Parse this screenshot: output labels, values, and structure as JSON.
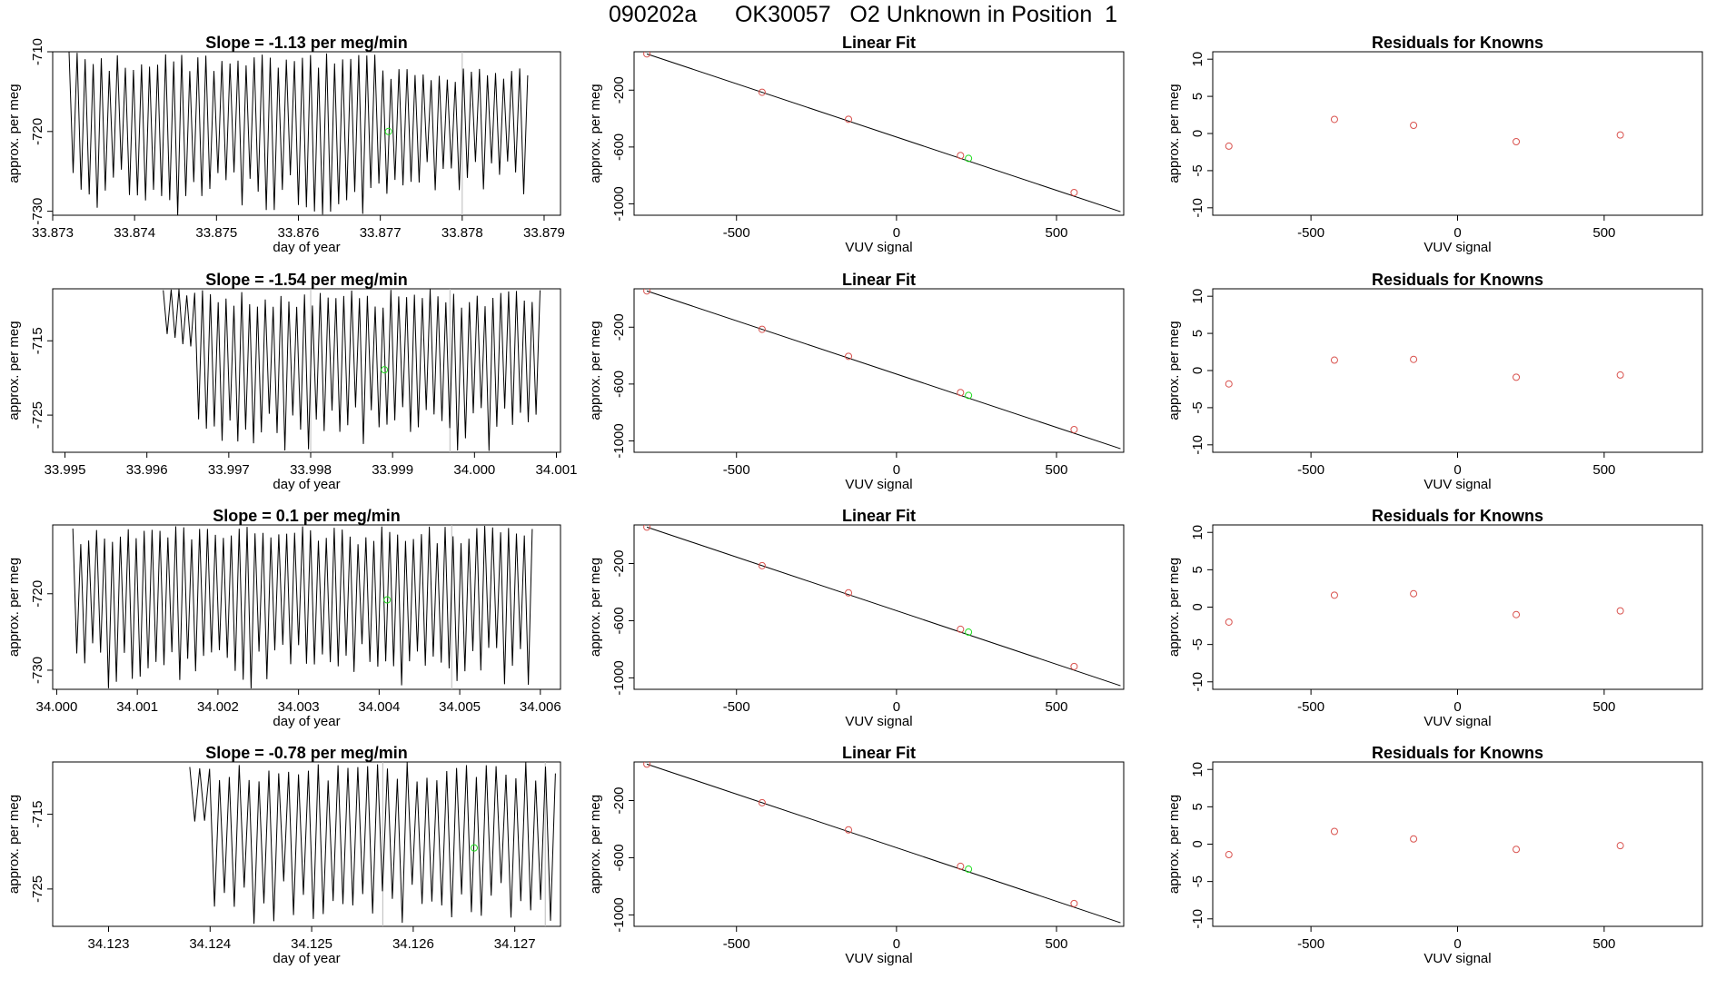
{
  "page_title": "090202a      OK30057   O2 Unknown in Position  1",
  "colors": {
    "trace": "#000000",
    "known_point": "#d9534f",
    "unknown_point": "#22dd22",
    "fit_line": "#000000"
  },
  "chart_data": [
    {
      "type": "line",
      "row": 0,
      "col": 0,
      "title": "Slope =  -1.13  per meg/min",
      "xlabel": "day of year",
      "ylabel": "approx. per meg",
      "xlim": [
        33.873,
        33.8792
      ],
      "ylim": [
        -730.5,
        -710
      ],
      "xticks": [
        33.873,
        33.874,
        33.875,
        33.876,
        33.877,
        33.878,
        33.879
      ],
      "xtick_labels": [
        "33.873",
        "33.874",
        "33.875",
        "33.876",
        "33.877",
        "33.878",
        "33.879"
      ],
      "yticks": [
        -710,
        -720,
        -730
      ],
      "ytick_labels": [
        "-710",
        "-720",
        "-730"
      ],
      "trace": {
        "x_start": 33.8732,
        "x_end": 33.8788,
        "cycles": 57,
        "low": -729,
        "high": -711,
        "segments": [
          {
            "from": 33.8732,
            "to": 33.877,
            "low": -730.5,
            "high": -710
          },
          {
            "from": 33.877,
            "to": 33.8788,
            "low": -728,
            "high": -712
          }
        ]
      },
      "unknown_marker": {
        "x": 33.8771,
        "y": -720.0
      },
      "vlines": [
        33.878
      ]
    },
    {
      "type": "scatter",
      "row": 0,
      "col": 1,
      "title": "Linear Fit",
      "xlabel": "VUV signal",
      "ylabel": "approx. per meg",
      "xlim": [
        -820,
        710
      ],
      "ylim": [
        -1080,
        70
      ],
      "xticks": [
        -500,
        0,
        500
      ],
      "xtick_labels": [
        "-500",
        "0",
        "500"
      ],
      "yticks": [
        -200,
        -600,
        -1000
      ],
      "ytick_labels": [
        "-200",
        "-600",
        "-1000"
      ],
      "fit_line": {
        "x": [
          -780,
          700
        ],
        "y": [
          55,
          -1055
        ]
      },
      "knowns": {
        "x": [
          -780,
          -420,
          -150,
          200,
          555
        ],
        "y": [
          55,
          -215,
          -405,
          -660,
          -920
        ]
      },
      "unknown": {
        "x": 225,
        "y": -680
      }
    },
    {
      "type": "scatter",
      "row": 0,
      "col": 2,
      "title": "Residuals for Knowns",
      "xlabel": "VUV signal",
      "ylabel": "approx. per meg",
      "xlim": [
        -835,
        835
      ],
      "ylim": [
        -11,
        11
      ],
      "xticks": [
        -500,
        0,
        500
      ],
      "xtick_labels": [
        "-500",
        "0",
        "500"
      ],
      "yticks": [
        10,
        5,
        0,
        -5,
        -10
      ],
      "ytick_labels": [
        "10",
        "5",
        "0",
        "-5",
        "-10"
      ],
      "knowns": {
        "x": [
          -780,
          -420,
          -150,
          200,
          555
        ],
        "y": [
          -1.7,
          1.9,
          1.1,
          -1.1,
          -0.2
        ]
      }
    },
    {
      "type": "line",
      "row": 1,
      "col": 0,
      "title": "Slope =  -1.54  per meg/min",
      "xlabel": "day of year",
      "ylabel": "approx. per meg",
      "xlim": [
        33.99485,
        34.00105
      ],
      "ylim": [
        -730,
        -708
      ],
      "xticks": [
        33.995,
        33.996,
        33.997,
        33.998,
        33.999,
        34.0,
        34.001
      ],
      "xtick_labels": [
        "33.995",
        "33.996",
        "33.997",
        "33.998",
        "33.999",
        "34.000",
        "34.001"
      ],
      "yticks": [
        -715,
        -725
      ],
      "ytick_labels": [
        "-715",
        "-725"
      ],
      "trace": {
        "x_start": 33.9962,
        "x_end": 34.0008,
        "cycles": 48,
        "low": -729,
        "high": -709,
        "segments": [
          {
            "from": 33.9962,
            "to": 33.9966,
            "low": -716,
            "high": -708
          },
          {
            "from": 33.9966,
            "to": 34.0008,
            "low": -730,
            "high": -708
          }
        ]
      },
      "unknown_marker": {
        "x": 33.9989,
        "y": -718.9
      },
      "vlines": [
        33.998,
        33.9997
      ]
    },
    {
      "type": "scatter",
      "row": 1,
      "col": 1,
      "title": "Linear Fit",
      "xlabel": "VUV signal",
      "ylabel": "approx. per meg",
      "xlim": [
        -820,
        710
      ],
      "ylim": [
        -1080,
        70
      ],
      "xticks": [
        -500,
        0,
        500
      ],
      "xtick_labels": [
        "-500",
        "0",
        "500"
      ],
      "yticks": [
        -200,
        -600,
        -1000
      ],
      "ytick_labels": [
        "-200",
        "-600",
        "-1000"
      ],
      "fit_line": {
        "x": [
          -780,
          700
        ],
        "y": [
          55,
          -1055
        ]
      },
      "knowns": {
        "x": [
          -780,
          -420,
          -150,
          200,
          555
        ],
        "y": [
          55,
          -215,
          -405,
          -660,
          -920
        ]
      },
      "unknown": {
        "x": 225,
        "y": -680
      }
    },
    {
      "type": "scatter",
      "row": 1,
      "col": 2,
      "title": "Residuals for Knowns",
      "xlabel": "VUV signal",
      "ylabel": "approx. per meg",
      "xlim": [
        -835,
        835
      ],
      "ylim": [
        -11,
        11
      ],
      "xticks": [
        -500,
        0,
        500
      ],
      "xtick_labels": [
        "-500",
        "0",
        "500"
      ],
      "yticks": [
        10,
        5,
        0,
        -5,
        -10
      ],
      "ytick_labels": [
        "10",
        "5",
        "0",
        "-5",
        "-10"
      ],
      "knowns": {
        "x": [
          -780,
          -420,
          -150,
          200,
          555
        ],
        "y": [
          -1.8,
          1.4,
          1.5,
          -0.9,
          -0.6
        ]
      }
    },
    {
      "type": "line",
      "row": 2,
      "col": 0,
      "title": "Slope =  0.1  per meg/min",
      "xlabel": "day of year",
      "ylabel": "approx. per meg",
      "xlim": [
        33.99995,
        34.00625
      ],
      "ylim": [
        -732.5,
        -711
      ],
      "xticks": [
        34.0,
        34.001,
        34.002,
        34.003,
        34.004,
        34.005,
        34.006
      ],
      "xtick_labels": [
        "34.000",
        "34.001",
        "34.002",
        "34.003",
        "34.004",
        "34.005",
        "34.006"
      ],
      "yticks": [
        -720,
        -730
      ],
      "ytick_labels": [
        "-720",
        "-730"
      ],
      "trace": {
        "x_start": 34.0002,
        "x_end": 34.0059,
        "cycles": 58,
        "low": -732,
        "high": -711,
        "segments": [
          {
            "from": 34.0002,
            "to": 34.0059,
            "low": -732.5,
            "high": -711
          }
        ]
      },
      "unknown_marker": {
        "x": 34.0041,
        "y": -720.8
      },
      "vlines": [
        34.0049
      ]
    },
    {
      "type": "scatter",
      "row": 2,
      "col": 1,
      "title": "Linear Fit",
      "xlabel": "VUV signal",
      "ylabel": "approx. per meg",
      "xlim": [
        -820,
        710
      ],
      "ylim": [
        -1080,
        70
      ],
      "xticks": [
        -500,
        0,
        500
      ],
      "xtick_labels": [
        "-500",
        "0",
        "500"
      ],
      "yticks": [
        -200,
        -600,
        -1000
      ],
      "ytick_labels": [
        "-200",
        "-600",
        "-1000"
      ],
      "fit_line": {
        "x": [
          -780,
          700
        ],
        "y": [
          55,
          -1055
        ]
      },
      "knowns": {
        "x": [
          -780,
          -420,
          -150,
          200,
          555
        ],
        "y": [
          55,
          -215,
          -405,
          -660,
          -920
        ]
      },
      "unknown": {
        "x": 225,
        "y": -680
      }
    },
    {
      "type": "scatter",
      "row": 2,
      "col": 2,
      "title": "Residuals for Knowns",
      "xlabel": "VUV signal",
      "ylabel": "approx. per meg",
      "xlim": [
        -835,
        835
      ],
      "ylim": [
        -11,
        11
      ],
      "xticks": [
        -500,
        0,
        500
      ],
      "xtick_labels": [
        "-500",
        "0",
        "500"
      ],
      "yticks": [
        10,
        5,
        0,
        -5,
        -10
      ],
      "ytick_labels": [
        "10",
        "5",
        "0",
        "-5",
        "-10"
      ],
      "knowns": {
        "x": [
          -780,
          -420,
          -150,
          200,
          555
        ],
        "y": [
          -2.0,
          1.6,
          1.8,
          -1.0,
          -0.5
        ]
      }
    },
    {
      "type": "line",
      "row": 3,
      "col": 0,
      "title": "Slope =  -0.78  per meg/min",
      "xlabel": "day of year",
      "ylabel": "approx. per meg",
      "xlim": [
        34.12245,
        34.12745
      ],
      "ylim": [
        -730,
        -708
      ],
      "xticks": [
        34.123,
        34.124,
        34.125,
        34.126,
        34.127
      ],
      "xtick_labels": [
        "34.123",
        "34.124",
        "34.125",
        "34.126",
        "34.127"
      ],
      "yticks": [
        -715,
        -725
      ],
      "ytick_labels": [
        "-715",
        "-725"
      ],
      "trace": {
        "x_start": 34.1238,
        "x_end": 34.1274,
        "cycles": 37,
        "low": -729,
        "high": -708,
        "segments": [
          {
            "from": 34.1238,
            "to": 34.124,
            "low": -716,
            "high": -708
          },
          {
            "from": 34.124,
            "to": 34.1274,
            "low": -730,
            "high": -708
          }
        ]
      },
      "unknown_marker": {
        "x": 34.1266,
        "y": -719.5
      },
      "vlines": [
        34.1257,
        34.1273
      ]
    },
    {
      "type": "scatter",
      "row": 3,
      "col": 1,
      "title": "Linear Fit",
      "xlabel": "VUV signal",
      "ylabel": "approx. per meg",
      "xlim": [
        -820,
        710
      ],
      "ylim": [
        -1080,
        70
      ],
      "xticks": [
        -500,
        0,
        500
      ],
      "xtick_labels": [
        "-500",
        "0",
        "500"
      ],
      "yticks": [
        -200,
        -600,
        -1000
      ],
      "ytick_labels": [
        "-200",
        "-600",
        "-1000"
      ],
      "fit_line": {
        "x": [
          -780,
          700
        ],
        "y": [
          55,
          -1055
        ]
      },
      "knowns": {
        "x": [
          -780,
          -420,
          -150,
          200,
          555
        ],
        "y": [
          55,
          -215,
          -405,
          -660,
          -920
        ]
      },
      "unknown": {
        "x": 225,
        "y": -680
      }
    },
    {
      "type": "scatter",
      "row": 3,
      "col": 2,
      "title": "Residuals for Knowns",
      "xlabel": "VUV signal",
      "ylabel": "approx. per meg",
      "xlim": [
        -835,
        835
      ],
      "ylim": [
        -11,
        11
      ],
      "xticks": [
        -500,
        0,
        500
      ],
      "xtick_labels": [
        "-500",
        "0",
        "500"
      ],
      "yticks": [
        10,
        5,
        0,
        -5,
        -10
      ],
      "ytick_labels": [
        "10",
        "5",
        "0",
        "-5",
        "-10"
      ],
      "knowns": {
        "x": [
          -780,
          -420,
          -150,
          200,
          555
        ],
        "y": [
          -1.4,
          1.7,
          0.7,
          -0.7,
          -0.2
        ]
      }
    }
  ]
}
